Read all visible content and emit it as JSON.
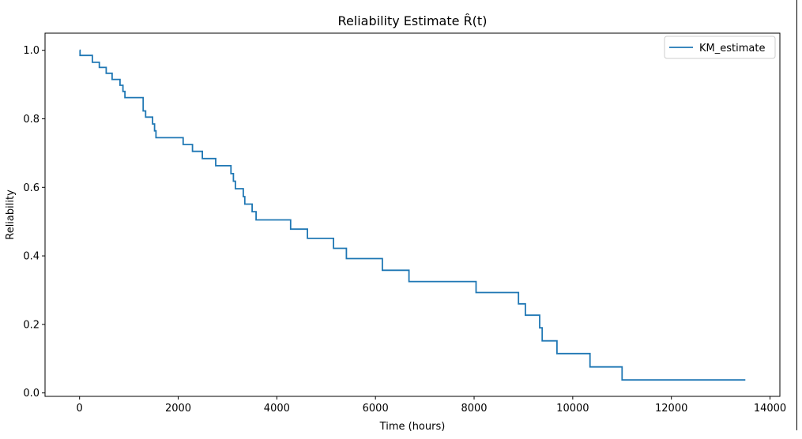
{
  "chart_data": {
    "type": "line",
    "step": "post",
    "title": "Reliability Estimate R̂(t)",
    "xlabel": "Time (hours)",
    "ylabel": "Reliability",
    "xlim": [
      -700,
      14200
    ],
    "ylim": [
      -0.01,
      1.05
    ],
    "x_ticks": [
      0,
      2000,
      4000,
      6000,
      8000,
      10000,
      12000,
      14000
    ],
    "y_ticks": [
      0.0,
      0.2,
      0.4,
      0.6,
      0.8,
      1.0
    ],
    "x_tick_labels": [
      "0",
      "2000",
      "4000",
      "6000",
      "8000",
      "10000",
      "12000",
      "14000"
    ],
    "y_tick_labels": [
      "0.0",
      "0.2",
      "0.4",
      "0.6",
      "0.8",
      "1.0"
    ],
    "grid": false,
    "legend_position": "top-right",
    "series": [
      {
        "name": "KM_estimate",
        "color": "#1f77b4",
        "x": [
          0,
          10,
          260,
          400,
          540,
          660,
          820,
          880,
          920,
          1290,
          1340,
          1480,
          1520,
          1550,
          2100,
          2290,
          2490,
          2760,
          3070,
          3120,
          3160,
          3200,
          3320,
          3350,
          3500,
          3580,
          4280,
          4620,
          5150,
          5410,
          6140,
          6680,
          8040,
          8900,
          9040,
          9330,
          9380,
          9680,
          10350,
          11000,
          13500
        ],
        "y": [
          1.0,
          0.985,
          0.965,
          0.95,
          0.933,
          0.915,
          0.898,
          0.88,
          0.862,
          0.823,
          0.805,
          0.785,
          0.765,
          0.745,
          0.725,
          0.705,
          0.684,
          0.663,
          0.64,
          0.618,
          0.596,
          0.596,
          0.573,
          0.551,
          0.529,
          0.505,
          0.478,
          0.451,
          0.422,
          0.392,
          0.358,
          0.325,
          0.293,
          0.26,
          0.227,
          0.19,
          0.152,
          0.115,
          0.076,
          0.038,
          0.038
        ]
      }
    ]
  }
}
